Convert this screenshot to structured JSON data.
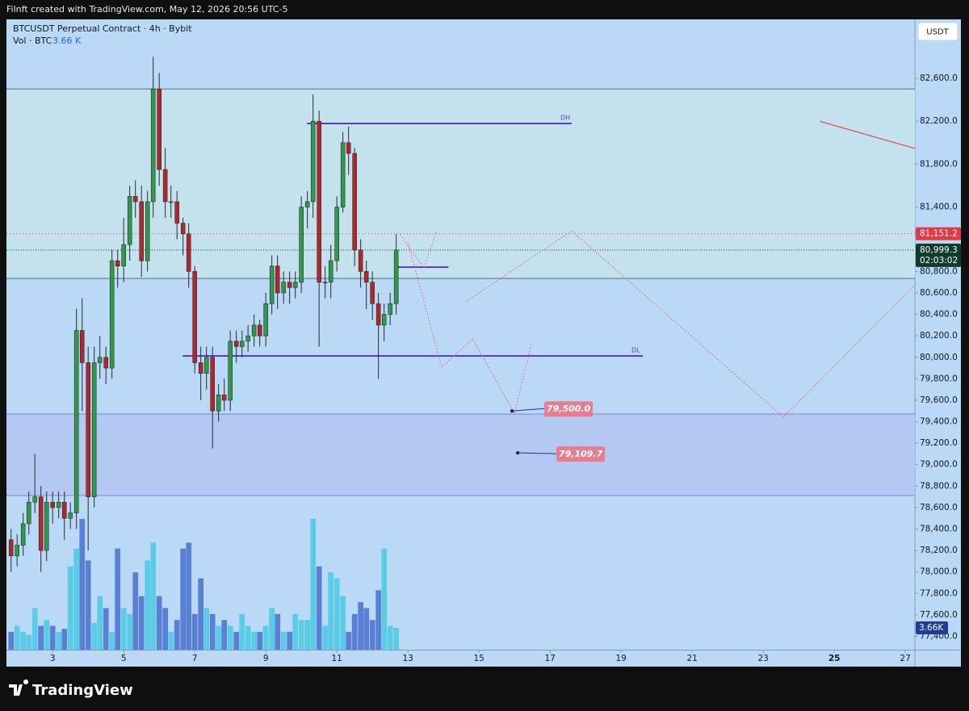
{
  "header": {
    "text": "Filnft created with TradingView.com, May 12, 2026 20:56 UTC-5"
  },
  "chart_data": {
    "type": "candlestick",
    "title": "BTCUSDT Perpetual Contract · 4h · Bybit",
    "volume_name": "Vol · BTC",
    "volume_last_label": "3.66 K",
    "volume_badge": "3.66K",
    "currency": "USDT",
    "up_color": "#2f9a4c",
    "down_color": "#b3262e",
    "wick_color": "#2a2a2a",
    "background": "#b9d9f6",
    "xlim": [
      1.7,
      27.27
    ],
    "ylim": [
      77276,
      83149
    ],
    "xticks": [
      3,
      5,
      7,
      9,
      11,
      13,
      15,
      17,
      19,
      21,
      23,
      25,
      27
    ],
    "xtick_bold": [
      25
    ],
    "yticks": [
      {
        "value": 82600,
        "label": "82,600.0"
      },
      {
        "value": 82200,
        "label": "82,200.0"
      },
      {
        "value": 81800,
        "label": "81,800.0"
      },
      {
        "value": 81400,
        "label": "81,400.0"
      },
      {
        "value": 80800,
        "label": "80,800.0"
      },
      {
        "value": 80600,
        "label": "80,600.0"
      },
      {
        "value": 80400,
        "label": "80,400.0"
      },
      {
        "value": 80200,
        "label": "80,200.0"
      },
      {
        "value": 80000,
        "label": "80,000.0"
      },
      {
        "value": 79800,
        "label": "79,800.0"
      },
      {
        "value": 79600,
        "label": "79,600.0"
      },
      {
        "value": 79400,
        "label": "79,400.0"
      },
      {
        "value": 79200,
        "label": "79,200.0"
      },
      {
        "value": 79000,
        "label": "79,000.0"
      },
      {
        "value": 78800,
        "label": "78,800.0"
      },
      {
        "value": 78600,
        "label": "78,600.0"
      },
      {
        "value": 78400,
        "label": "78,400.0"
      },
      {
        "value": 78200,
        "label": "78,200.0"
      },
      {
        "value": 78000,
        "label": "78,000.0"
      },
      {
        "value": 77800,
        "label": "77,800.0"
      },
      {
        "value": 77600,
        "label": "77,600.0"
      },
      {
        "value": 77400,
        "label": "77,400.0"
      }
    ],
    "x": [
      1.83,
      2,
      2.17,
      2.33,
      2.5,
      2.67,
      2.83,
      3,
      3.17,
      3.33,
      3.5,
      3.67,
      3.83,
      4,
      4.17,
      4.33,
      4.5,
      4.67,
      4.83,
      5,
      5.17,
      5.33,
      5.5,
      5.67,
      5.83,
      6,
      6.17,
      6.33,
      6.5,
      6.67,
      6.83,
      7,
      7.17,
      7.33,
      7.5,
      7.67,
      7.83,
      8,
      8.17,
      8.33,
      8.5,
      8.67,
      8.83,
      9,
      9.17,
      9.33,
      9.5,
      9.67,
      9.83,
      10,
      10.17,
      10.33,
      10.5,
      10.67,
      10.83,
      11,
      11.17,
      11.33,
      11.5,
      11.67,
      11.83,
      12,
      12.17,
      12.33,
      12.5,
      12.67
    ],
    "open": [
      78300,
      78150,
      78250,
      78450,
      78650,
      78700,
      78200,
      78650,
      78600,
      78650,
      78500,
      78550,
      80250,
      79950,
      78700,
      79950,
      80000,
      79900,
      80900,
      80850,
      81050,
      81500,
      81450,
      80900,
      81450,
      82500,
      81750,
      81450,
      81450,
      81250,
      81150,
      80800,
      79950,
      79850,
      80000,
      79500,
      79650,
      79600,
      80150,
      80100,
      80150,
      80200,
      80300,
      80200,
      80500,
      80850,
      80600,
      80700,
      80650,
      80700,
      81400,
      81450,
      82200,
      80700,
      80700,
      80900,
      81400,
      82000,
      81900,
      81000,
      80800,
      80700,
      80500,
      80300,
      80400,
      80500
    ],
    "high": [
      78400,
      78350,
      78550,
      78750,
      79100,
      78800,
      78750,
      78750,
      78750,
      78750,
      78650,
      80450,
      80550,
      80100,
      80100,
      80200,
      80100,
      81000,
      81000,
      81300,
      81600,
      81650,
      81600,
      81550,
      82800,
      82650,
      81950,
      81600,
      81550,
      81300,
      81250,
      80850,
      80100,
      80100,
      80100,
      79750,
      79800,
      80250,
      80250,
      80250,
      80300,
      80400,
      80350,
      80600,
      80950,
      80950,
      80800,
      80800,
      80800,
      81500,
      81550,
      82450,
      82300,
      80850,
      81050,
      81500,
      82100,
      82150,
      81950,
      81100,
      80900,
      80800,
      80600,
      80500,
      80600,
      81150
    ],
    "low": [
      78000,
      78050,
      78150,
      78350,
      78550,
      78000,
      78100,
      78450,
      78500,
      78300,
      78400,
      78400,
      79500,
      78200,
      78600,
      79800,
      79750,
      79800,
      80650,
      80700,
      80900,
      81300,
      80750,
      80800,
      81300,
      81600,
      81300,
      81300,
      81100,
      80950,
      80650,
      79850,
      79600,
      79700,
      79150,
      79400,
      79500,
      79500,
      79950,
      80000,
      80050,
      80100,
      80100,
      80100,
      80400,
      80450,
      80500,
      80500,
      80550,
      80600,
      81200,
      81300,
      80100,
      80550,
      80550,
      80800,
      81350,
      81700,
      80850,
      80650,
      80450,
      80350,
      79800,
      80150,
      80300,
      80400
    ],
    "close": [
      78150,
      78250,
      78450,
      78650,
      78700,
      78200,
      78650,
      78600,
      78650,
      78500,
      78550,
      80250,
      79950,
      78700,
      79950,
      80000,
      79900,
      80900,
      80850,
      81050,
      81500,
      81450,
      80900,
      81450,
      82500,
      81750,
      81450,
      81450,
      81250,
      81150,
      80800,
      79950,
      79850,
      80000,
      79500,
      79650,
      79600,
      80150,
      80100,
      80150,
      80200,
      80300,
      80200,
      80500,
      80850,
      80600,
      80700,
      80650,
      80700,
      81400,
      81450,
      82200,
      80700,
      80700,
      80900,
      81400,
      82000,
      81900,
      81000,
      80800,
      80700,
      80500,
      80300,
      80400,
      80500,
      80999.3
    ],
    "volume": {
      "up_color": "#5ccbe6",
      "down_color": "#5b80d3",
      "ylim": [
        0,
        106
      ],
      "values": [
        3,
        4,
        3,
        2.5,
        7,
        4,
        5,
        4,
        3,
        3.5,
        14,
        17,
        22,
        15,
        4.5,
        9,
        7,
        3,
        17,
        7,
        6,
        13,
        9,
        15,
        18,
        9,
        7,
        3,
        5,
        17,
        18,
        6,
        12,
        7,
        6,
        4,
        5,
        4,
        3,
        6,
        4,
        3,
        3,
        4,
        7,
        6,
        3,
        3,
        6,
        5,
        5,
        22,
        14,
        4,
        13,
        12,
        9,
        3,
        6,
        8,
        7,
        5,
        10,
        17,
        4,
        3.66
      ]
    },
    "zones": [
      {
        "from": 82500,
        "to": 80735,
        "color": "#c3e2ee",
        "border": "#4f6e80"
      },
      {
        "from": 79472,
        "to": 78712,
        "color": "#b3c9f2",
        "border": "#8a7fdc"
      }
    ],
    "levels": [
      {
        "label": "DH",
        "value": 82179,
        "x": [
          10.16,
          17.61
        ],
        "color": "#5a3cc8"
      },
      {
        "label": "DL",
        "value": 80013,
        "x": [
          6.66,
          19.61
        ],
        "color": "#5a3cc8"
      },
      {
        "value": 80840,
        "x": [
          12.66,
          14.14
        ],
        "color": "#5a3cc8"
      }
    ],
    "trend_line": {
      "x": [
        24.59,
        27.27
      ],
      "y": [
        82200,
        81946
      ],
      "color": "#e0454f"
    },
    "projections": [
      {
        "x": [
          12.77,
          13.45,
          13.8
        ],
        "y": [
          81149,
          80833,
          81164
        ]
      },
      {
        "x": [
          13.0,
          13.95,
          14.82,
          16.0,
          16.48
        ],
        "y": [
          81073,
          79908,
          80171,
          79479,
          80133
        ]
      },
      {
        "x": [
          14.66,
          17.61,
          23.57,
          27.27
        ],
        "y": [
          80524,
          81179,
          79442,
          80675
        ]
      }
    ],
    "projection_color": "#e8708a",
    "annotations": [
      {
        "x": 15.93,
        "value": 79500,
        "label": "79,500.0"
      },
      {
        "x": 16.09,
        "value": 79109.7,
        "label": "79,109.7"
      }
    ],
    "mark_price": {
      "value": 81151.2,
      "label": "81,151.2",
      "color": "#e03a48"
    },
    "last_price": {
      "value": 80999.3,
      "label": "80,999.3",
      "countdown": "02:03:02",
      "color": "#0f3b2c"
    }
  },
  "footer": {
    "logo": "TradingView"
  }
}
